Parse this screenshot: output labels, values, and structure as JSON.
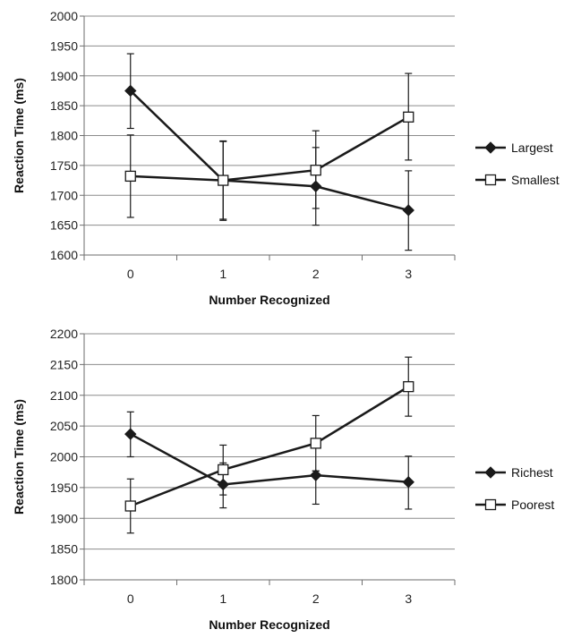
{
  "chart_data": [
    {
      "type": "line",
      "title": "",
      "xlabel": "Number Recognized",
      "ylabel": "Reaction Time (ms)",
      "categories": [
        "0",
        "1",
        "2",
        "3"
      ],
      "ylim": [
        1600,
        2000
      ],
      "yticks": [
        1600,
        1650,
        1700,
        1750,
        1800,
        1850,
        1900,
        1950,
        2000
      ],
      "grid": true,
      "legend_position": "right",
      "series": [
        {
          "name": "Largest",
          "marker": "diamond-filled",
          "values": [
            1875,
            1725,
            1715,
            1675
          ],
          "error_low": [
            1812,
            1658,
            1650,
            1608
          ],
          "error_high": [
            1937,
            1790,
            1780,
            1741
          ]
        },
        {
          "name": "Smallest",
          "marker": "square-open",
          "values": [
            1732,
            1725,
            1742,
            1831
          ],
          "error_low": [
            1663,
            1660,
            1678,
            1759
          ],
          "error_high": [
            1801,
            1791,
            1808,
            1904
          ]
        }
      ]
    },
    {
      "type": "line",
      "title": "",
      "xlabel": "Number Recognized",
      "ylabel": "Reaction Time (ms)",
      "categories": [
        "0",
        "1",
        "2",
        "3"
      ],
      "ylim": [
        1800,
        2200
      ],
      "yticks": [
        1800,
        1850,
        1900,
        1950,
        2000,
        2050,
        2100,
        2150,
        2200
      ],
      "grid": true,
      "legend_position": "right",
      "series": [
        {
          "name": "Richest",
          "marker": "diamond-filled",
          "values": [
            2037,
            1955,
            1970,
            1959
          ],
          "error_low": [
            2000,
            1917,
            1923,
            1915
          ],
          "error_high": [
            2073,
            1990,
            1977,
            2001
          ]
        },
        {
          "name": "Poorest",
          "marker": "square-open",
          "values": [
            1920,
            1979,
            2022,
            2114
          ],
          "error_low": [
            1876,
            1938,
            1977,
            2066
          ],
          "error_high": [
            1964,
            2019,
            2067,
            2162
          ]
        }
      ]
    }
  ]
}
